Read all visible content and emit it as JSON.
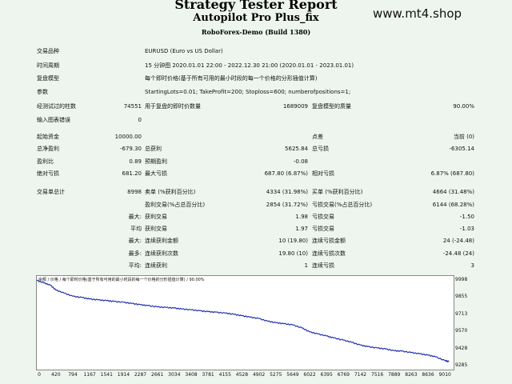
{
  "header": {
    "title": "Strategy Tester Report",
    "subtitle": "Autopilot Pro Plus_fix",
    "server": "RoboForex-Demo (Build 1380)",
    "watermark": "www.mt4.shop"
  },
  "info": {
    "symbol_label": "交易品种",
    "symbol_value": "EURUSD (Euro vs US Dollar)",
    "period_label": "时间周期",
    "period_value": "15 分钟图 2020.01.01 22:00 - 2022.12.30 21:00 (2020.01.01 - 2023.01.01)",
    "model_label": "复盘模型",
    "model_value": "每个即时价格(基于所有可用的最小时段的每一个价格的分形插值计算)",
    "params_label": "参数",
    "params_value": "StartingLots=0.01; TakeProfit=200; Stoploss=600; numberofpositions=1;",
    "bars_label": "经测试过的柱数",
    "bars_value": "74551",
    "ticks_label": "用于复盘的即时价数量",
    "ticks_value": "1689009",
    "quality_label": "复盘模型的质量",
    "quality_value": "90.00%",
    "errors_label": "输入图表错误",
    "errors_value": "0"
  },
  "stats": {
    "deposit_label": "起始资金",
    "deposit_value": "10000.00",
    "spread_label": "点差",
    "spread_value": "当前 (0)",
    "net_label": "总净盈利",
    "net_value": "-679.30",
    "gross_profit_label": "总获利",
    "gross_profit_value": "5625.84",
    "gross_loss_label": "总亏损",
    "gross_loss_value": "-6305.14",
    "pf_label": "盈利比",
    "pf_value": "0.89",
    "expected_label": "预期盈利",
    "expected_value": "-0.08",
    "abs_dd_label": "绝对亏损",
    "abs_dd_value": "681.20",
    "max_dd_label": "最大亏损",
    "max_dd_value": "687.80 (6.87%)",
    "rel_dd_label": "相对亏损",
    "rel_dd_value": "6.87% (687.80)"
  },
  "trades": {
    "total_label": "交易单总计",
    "total_value": "8998",
    "short_label": "卖单 (%获利百分比)",
    "short_value": "4334 (31.98%)",
    "long_label": "买单 (%获利百分比)",
    "long_value": "4664 (31.48%)",
    "win_label": "盈利交易(%占总百分比)",
    "win_value": "2854 (31.72%)",
    "loss_label": "亏损交易(%占总百分比)",
    "loss_value": "6144 (68.28%)",
    "max_label": "最大:",
    "max_profit_label": "获利交易",
    "max_profit_value": "1.98",
    "max_loss_label": "亏损交易",
    "max_loss_value": "-1.50",
    "avg_label": "平均",
    "avg_profit_label": "获利交易",
    "avg_profit_value": "1.97",
    "avg_loss_label": "亏损交易",
    "avg_loss_value": "-1.03",
    "maxcons_label": "最大:",
    "maxcons_win_label": "连续获利金额",
    "maxcons_win_value": "10 (19.80)",
    "maxcons_loss_label": "连续亏损金额",
    "maxcons_loss_value": "24 (-24.48)",
    "maximal_label": "最多:",
    "maximal_win_label": "连续获利次数",
    "maximal_win_value": "19.80 (10)",
    "maximal_loss_label": "连续亏损次数",
    "maximal_loss_value": "-24.48 (24)",
    "avgcons_label": "平均:",
    "avgcons_win_label": "连续获利",
    "avgcons_win_value": "1",
    "avgcons_loss_label": "连续亏损",
    "avgcons_loss_value": "3"
  },
  "chart_caption": "余额 / 价格 / 每个即时价格(基于所有可用的最小时段的每一个价格的分形插值计算) / 90.00%",
  "chart_data": {
    "type": "line",
    "xticks": [
      "0",
      "420",
      "794",
      "1167",
      "1541",
      "1914",
      "2287",
      "2661",
      "3034",
      "3408",
      "3781",
      "4155",
      "4528",
      "4902",
      "5275",
      "5649",
      "6022",
      "6395",
      "6769",
      "7142",
      "7516",
      "7889",
      "8263",
      "8636",
      "9010"
    ],
    "yticks": [
      "9998",
      "9855",
      "9713",
      "9570",
      "9428",
      "9285"
    ],
    "xlim": [
      0,
      9200
    ],
    "ylim": [
      9285,
      10010
    ],
    "series": [
      {
        "color": "#2233aa",
        "x": [
          0,
          150,
          300,
          420,
          600,
          794,
          1000,
          1167,
          1350,
          1541,
          1700,
          1914,
          2100,
          2287,
          2450,
          2661,
          2850,
          3034,
          3200,
          3408,
          3600,
          3781,
          3950,
          4155,
          4350,
          4528,
          4700,
          4902,
          5100,
          5275,
          5450,
          5649,
          5850,
          6022,
          6200,
          6395,
          6550,
          6769,
          6950,
          7142,
          7300,
          7516,
          7700,
          7889,
          8050,
          8263,
          8450,
          8636,
          8800,
          9010,
          9100
        ],
        "y": [
          10000,
          9980,
          9960,
          9920,
          9895,
          9868,
          9858,
          9846,
          9838,
          9832,
          9825,
          9818,
          9808,
          9798,
          9790,
          9780,
          9775,
          9770,
          9762,
          9755,
          9747,
          9740,
          9735,
          9728,
          9718,
          9706,
          9695,
          9683,
          9660,
          9648,
          9640,
          9630,
          9605,
          9572,
          9555,
          9538,
          9522,
          9503,
          9485,
          9462,
          9450,
          9438,
          9430,
          9415,
          9412,
          9400,
          9390,
          9378,
          9365,
          9333,
          9325
        ]
      }
    ]
  }
}
